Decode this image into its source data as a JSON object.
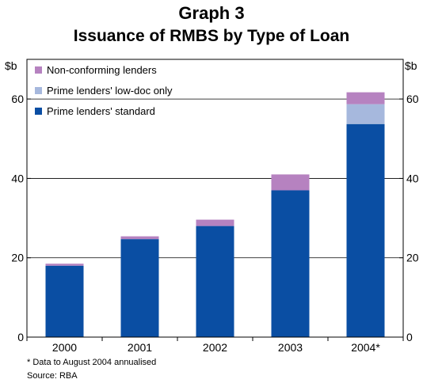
{
  "header": {
    "graph_label": "Graph 3",
    "title": "Issuance of RMBS by Type of Loan"
  },
  "footnotes": {
    "note": "* Data to August 2004 annualised",
    "source": "Source: RBA"
  },
  "chart_data": {
    "type": "bar",
    "stacked": true,
    "title": "Issuance of RMBS by Type of Loan",
    "categories": [
      "2000",
      "2001",
      "2002",
      "2003",
      "2004*"
    ],
    "series": [
      {
        "name": "Prime lenders' standard",
        "color": "#0a4ea3",
        "values": [
          18,
          24.7,
          28,
          37,
          53.7
        ]
      },
      {
        "name": "Prime lenders' low-doc only",
        "color": "#a6b8dd",
        "values": [
          0,
          0,
          0,
          0,
          5
        ]
      },
      {
        "name": "Non-conforming lenders",
        "color": "#b682c0",
        "values": [
          0.5,
          0.7,
          1.6,
          4,
          3
        ]
      }
    ],
    "legend_order": [
      2,
      1,
      0
    ],
    "y_unit_left": "$b",
    "y_unit_right": "$b",
    "ylim": [
      0,
      70
    ],
    "yticks": [
      0,
      20,
      40,
      60
    ],
    "grid": true,
    "legend_position": "top-left"
  }
}
